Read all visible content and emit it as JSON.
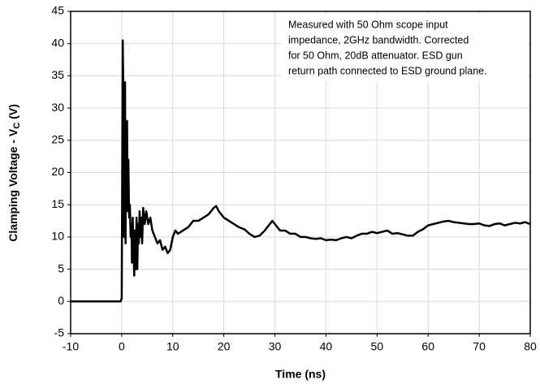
{
  "chart_data": {
    "type": "line",
    "xlabel": "Time (ns)",
    "ylabel_parts": [
      "Clamping Voltage - V",
      "C",
      " (V)"
    ],
    "annotation": [
      "Measured with 50 Ohm scope input",
      "impedance, 2GHz bandwidth. Corrected",
      "for 50 Ohm, 20dB attenuator. ESD gun",
      "return path connected to ESD ground plane."
    ],
    "xlim": [
      -10,
      80
    ],
    "xticks": [
      -10,
      0,
      10,
      20,
      30,
      40,
      50,
      60,
      70,
      80
    ],
    "ylim": [
      -5,
      45
    ],
    "yticks": [
      -5,
      0,
      5,
      10,
      15,
      20,
      25,
      30,
      35,
      40,
      45
    ],
    "grid": true,
    "color": "#000000",
    "x": [
      -10,
      -5,
      -0.2,
      0,
      0.1,
      0.2,
      0.35,
      0.45,
      0.55,
      0.65,
      0.75,
      0.85,
      0.95,
      1.05,
      1.15,
      1.3,
      1.45,
      1.6,
      1.75,
      1.9,
      2.0,
      2.15,
      2.3,
      2.45,
      2.6,
      2.75,
      2.9,
      3.05,
      3.2,
      3.35,
      3.5,
      3.65,
      3.8,
      4.0,
      4.2,
      4.5,
      4.8,
      5.2,
      5.6,
      6,
      6.5,
      7,
      7.5,
      8,
      8.5,
      9,
      9.5,
      10,
      10.5,
      11,
      12,
      13,
      14,
      15,
      16,
      17,
      18,
      18.5,
      19,
      20,
      21,
      22,
      23,
      24,
      25,
      26,
      27,
      28,
      29,
      29.5,
      30,
      31,
      32,
      33,
      34,
      35,
      36,
      37,
      38,
      39,
      40,
      41,
      42,
      43,
      44,
      45,
      46,
      47,
      48,
      49,
      50,
      51,
      52,
      53,
      54,
      55,
      56,
      57,
      58,
      59,
      60,
      61,
      62,
      63,
      64,
      65,
      66,
      67,
      68,
      69,
      70,
      71,
      72,
      73,
      74,
      75,
      76,
      77,
      78,
      79,
      80
    ],
    "values": [
      0,
      0,
      0,
      0.5,
      20,
      40.5,
      30,
      10,
      33,
      34,
      9,
      25,
      15,
      28,
      14,
      22,
      13,
      15,
      10,
      12,
      6,
      13,
      9,
      4,
      11,
      5,
      13,
      5,
      12,
      9,
      14,
      10,
      13,
      9,
      14.5,
      12,
      14,
      12,
      13,
      11,
      10,
      9,
      9.5,
      8,
      8.5,
      7.5,
      8,
      10,
      11,
      10.5,
      11,
      11.5,
      12.5,
      12.5,
      13,
      13.5,
      14.5,
      14.8,
      14,
      13,
      12.5,
      12,
      11.5,
      11.2,
      10.5,
      10,
      10.2,
      11,
      12,
      12.5,
      12,
      11,
      11,
      10.5,
      10.5,
      10,
      10,
      9.8,
      9.7,
      9.8,
      9.5,
      9.6,
      9.5,
      9.8,
      10,
      9.8,
      10.2,
      10.5,
      10.5,
      10.8,
      10.6,
      10.8,
      11,
      10.5,
      10.6,
      10.4,
      10.2,
      10.2,
      10.8,
      11.2,
      11.8,
      12,
      12.2,
      12.4,
      12.5,
      12.3,
      12.2,
      12.1,
      12,
      12,
      12.1,
      11.8,
      11.7,
      12,
      12.1,
      11.8,
      12,
      12.2,
      12.1,
      12.3,
      12
    ]
  }
}
